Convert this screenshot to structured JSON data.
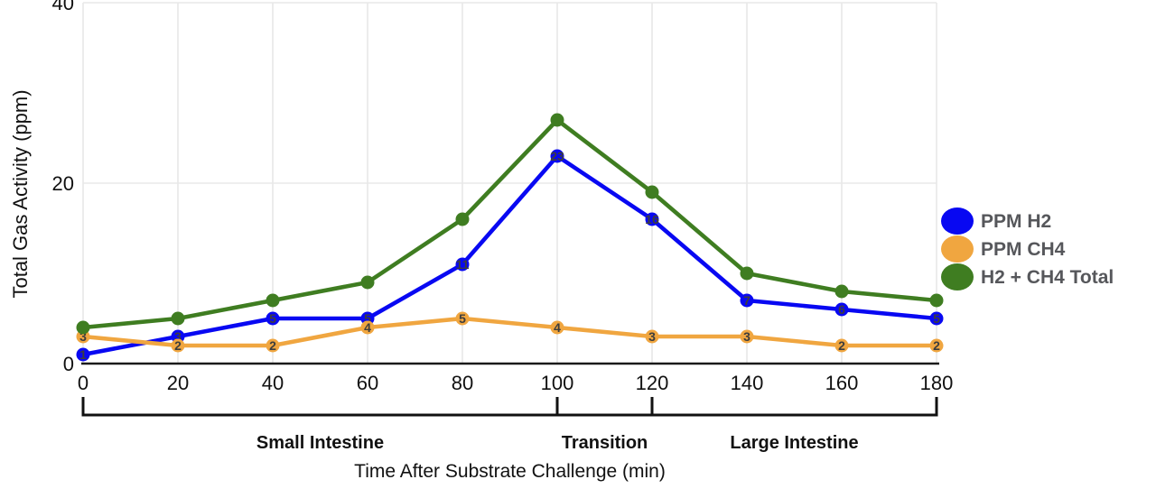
{
  "chart_data": {
    "type": "line",
    "xlabel": "Time After Substrate Challenge (min)",
    "ylabel": "Total Gas Activity (ppm)",
    "x": [
      0,
      20,
      40,
      60,
      80,
      100,
      120,
      140,
      160,
      180
    ],
    "x_tick_labels": [
      "0",
      "20",
      "40",
      "60",
      "80",
      "100",
      "120",
      "140",
      "160",
      "180"
    ],
    "xlim": [
      0,
      180
    ],
    "y_ticks": [
      0,
      20,
      40
    ],
    "y_tick_labels": [
      "0",
      "20",
      "40"
    ],
    "ylim": [
      0,
      40
    ],
    "grid": true,
    "legend_position": "right",
    "series": [
      {
        "name": "PPM H2",
        "color": "#0808f2",
        "values": [
          1,
          3,
          5,
          5,
          11,
          23,
          16,
          7,
          6,
          5
        ],
        "show_point_labels": true
      },
      {
        "name": "PPM CH4",
        "color": "#f0a640",
        "values": [
          3,
          2,
          2,
          4,
          5,
          4,
          3,
          3,
          2,
          2
        ],
        "show_point_labels": true
      },
      {
        "name": "H2 + CH4 Total",
        "color": "#3f7d21",
        "values": [
          4,
          5,
          7,
          9,
          16,
          27,
          19,
          10,
          8,
          7
        ],
        "show_point_labels": false
      }
    ],
    "regions": [
      {
        "label": "Small Intestine",
        "from": 0,
        "to": 100
      },
      {
        "label": "Transition",
        "from": 100,
        "to": 120
      },
      {
        "label": "Large Intestine",
        "from": 120,
        "to": 180
      }
    ]
  },
  "colors": {
    "grid": "#e8e8e8",
    "axis_line": "#1a1a1a",
    "tick_text": "#111111",
    "point_label": "#3d3d3d",
    "legend_text": "#56575b",
    "bracket": "#111111",
    "region_text": "#111111"
  }
}
